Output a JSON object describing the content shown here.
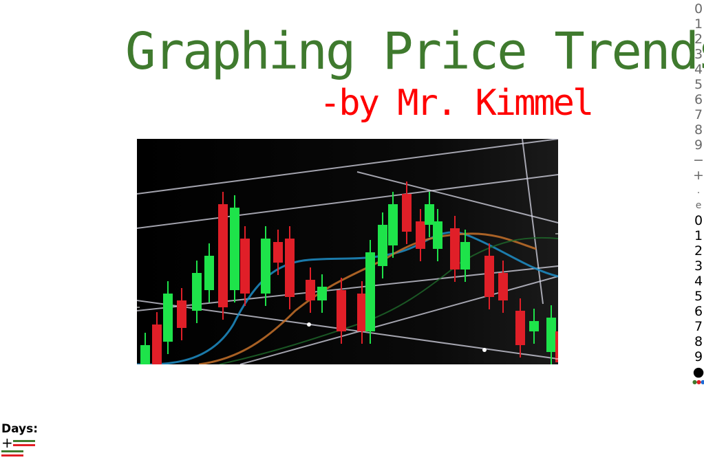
{
  "header": {
    "title": "Graphing Price Trends",
    "subtitle": "-by Mr. Kimmel"
  },
  "colors": {
    "title": "#3f7a2e",
    "subtitle": "#ff0000",
    "candle_up": "#1ee34a",
    "candle_down": "#e01f28",
    "ma_blue": "#1f8ec7",
    "ma_orange": "#c6712a",
    "ma_green": "#1f6b2c",
    "bar_green": "#3f7a2e",
    "bar_red": "#e21e25"
  },
  "keypad": {
    "gray_keys": [
      "0",
      "1",
      "2",
      "3",
      "4",
      "5",
      "6",
      "7",
      "8",
      "9",
      "−",
      "+",
      ".",
      "e"
    ],
    "black_keys": [
      "0",
      "1",
      "2",
      "3",
      "4",
      "5",
      "6",
      "7",
      "8",
      "9",
      "●"
    ]
  },
  "days": {
    "label": "Days:",
    "plus": "+"
  }
}
